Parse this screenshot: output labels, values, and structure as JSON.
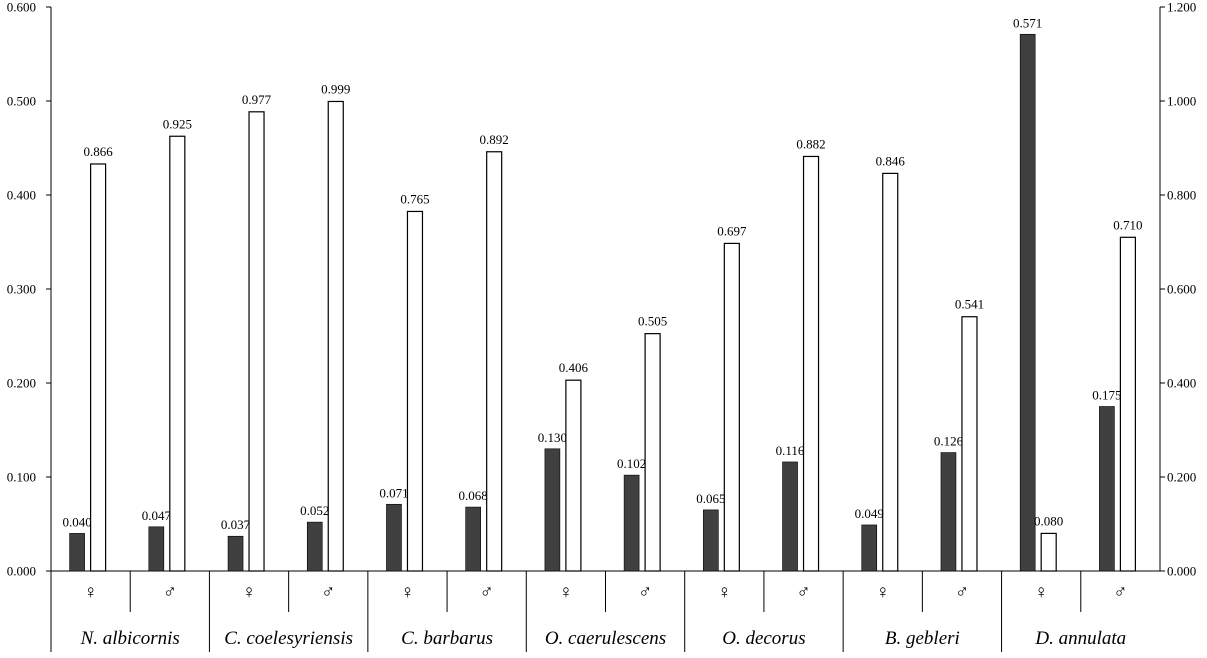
{
  "chart_data": {
    "type": "bar",
    "title": "",
    "xlabel": "",
    "ylabel_left": "",
    "ylabel_right": "",
    "left_axis": {
      "ylim": [
        0,
        0.6
      ],
      "ticks": [
        "0.000",
        "0.100",
        "0.200",
        "0.300",
        "0.400",
        "0.500",
        "0.600"
      ]
    },
    "right_axis": {
      "ylim": [
        0,
        1.2
      ],
      "ticks": [
        "0.000",
        "0.200",
        "0.400",
        "0.600",
        "0.800",
        "1.000",
        "1.200"
      ]
    },
    "grid": false,
    "legend": "none",
    "groups": [
      {
        "species": "N. albicornis",
        "sexes": [
          "♀",
          "♂"
        ]
      },
      {
        "species": "C. coelesyriensis",
        "sexes": [
          "♀",
          "♂"
        ]
      },
      {
        "species": "C. barbarus",
        "sexes": [
          "♀",
          "♂"
        ]
      },
      {
        "species": "O. caerulescens",
        "sexes": [
          "♀",
          "♂"
        ]
      },
      {
        "species": "O. decorus",
        "sexes": [
          "♀",
          "♂"
        ]
      },
      {
        "species": "B. gebleri",
        "sexes": [
          "♀",
          "♂"
        ]
      },
      {
        "species": "D. annulata",
        "sexes": [
          "♀",
          "♂"
        ]
      }
    ],
    "series": [
      {
        "axis": "left",
        "color": "#404040",
        "values": [
          0.04,
          0.047,
          0.037,
          0.052,
          0.071,
          0.068,
          0.13,
          0.102,
          0.065,
          0.116,
          0.049,
          0.126,
          0.571,
          0.175
        ],
        "labels": [
          "0.040",
          "0.047",
          "0.037",
          "0.052",
          "0.071",
          "0.068",
          "0.130",
          "0.102",
          "0.065",
          "0.116",
          "0.049",
          "0.126",
          "0.571",
          "0.175"
        ]
      },
      {
        "axis": "right",
        "color": "#ffffff",
        "values": [
          0.866,
          0.925,
          0.977,
          0.999,
          0.765,
          0.892,
          0.406,
          0.505,
          0.697,
          0.882,
          0.846,
          0.541,
          0.08,
          0.71
        ],
        "labels": [
          "0.866",
          "0.925",
          "0.977",
          "0.999",
          "0.765",
          "0.892",
          "0.406",
          "0.505",
          "0.697",
          "0.882",
          "0.846",
          "0.541",
          "0.080",
          "0.710"
        ]
      }
    ]
  }
}
